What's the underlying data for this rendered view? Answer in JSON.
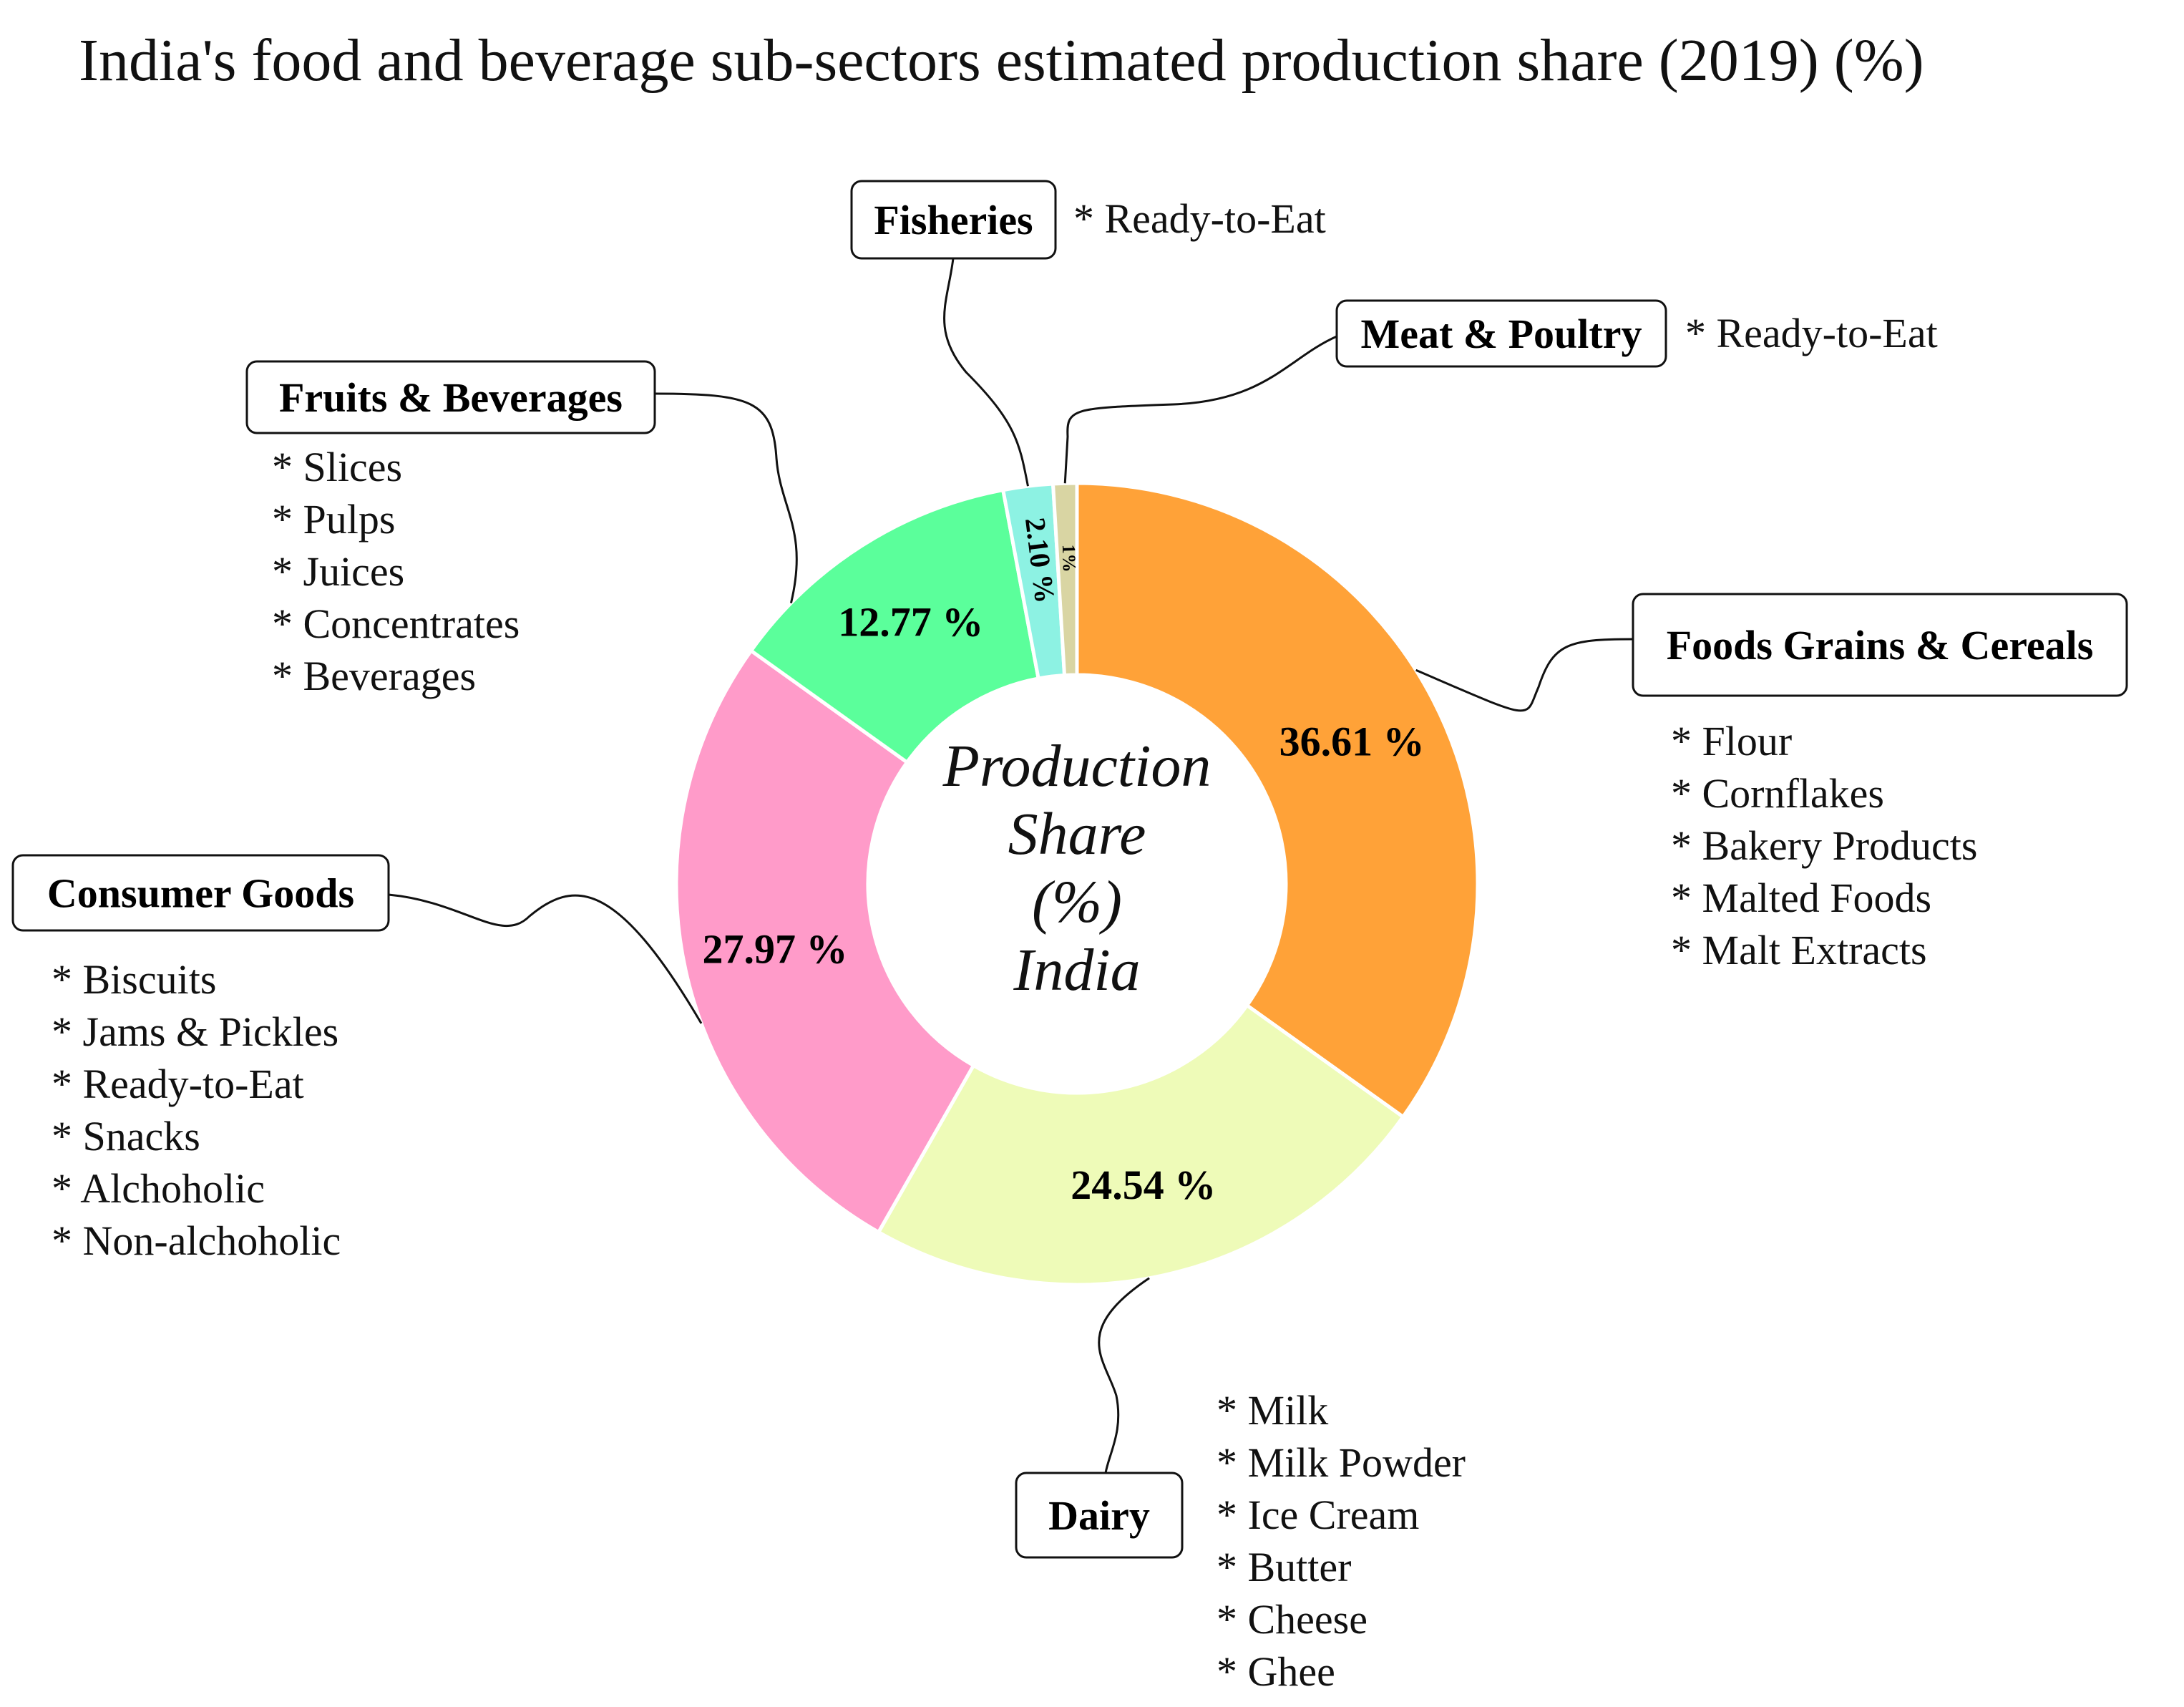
{
  "chart_data": {
    "type": "pie",
    "variant": "donut",
    "title": "India's food and beverage sub-sectors estimated production share (2019) (%)",
    "center_label": [
      "Production",
      "Share",
      "(%)",
      "India"
    ],
    "slices": [
      {
        "name": "Foods Grains & Cereals",
        "value": 36.61,
        "label": "36.61 %",
        "color": "#FFA238",
        "items": [
          "* Flour",
          "* Cornflakes",
          "* Bakery Products",
          "* Malted Foods",
          "* Malt Extracts"
        ]
      },
      {
        "name": "Dairy",
        "value": 24.54,
        "label": "24.54 %",
        "color": "#EEFBB8",
        "items": [
          "* Milk",
          "* Milk Powder",
          "* Ice Cream",
          "* Butter",
          "* Cheese",
          "* Ghee"
        ]
      },
      {
        "name": "Consumer Goods",
        "value": 27.97,
        "label": "27.97 %",
        "color": "#FF9BC9",
        "items": [
          "* Biscuits",
          "* Jams & Pickles",
          "* Ready-to-Eat",
          "* Snacks",
          "* Alchoholic",
          "* Non-alchoholic"
        ]
      },
      {
        "name": "Fruits & Beverages",
        "value": 12.77,
        "label": "12.77 %",
        "color": "#5BFF9B",
        "items": [
          "* Slices",
          "* Pulps",
          "* Juices",
          "* Concentrates",
          "* Beverages"
        ]
      },
      {
        "name": "Fisheries",
        "value": 2.1,
        "label": "2.10 %",
        "color": "#8DF2E3",
        "items": [
          "* Ready-to-Eat"
        ]
      },
      {
        "name": "Meat & Poultry",
        "value": 1,
        "label": "1%",
        "color": "#D9D5A3",
        "items": [
          "* Ready-to-Eat"
        ]
      }
    ]
  }
}
